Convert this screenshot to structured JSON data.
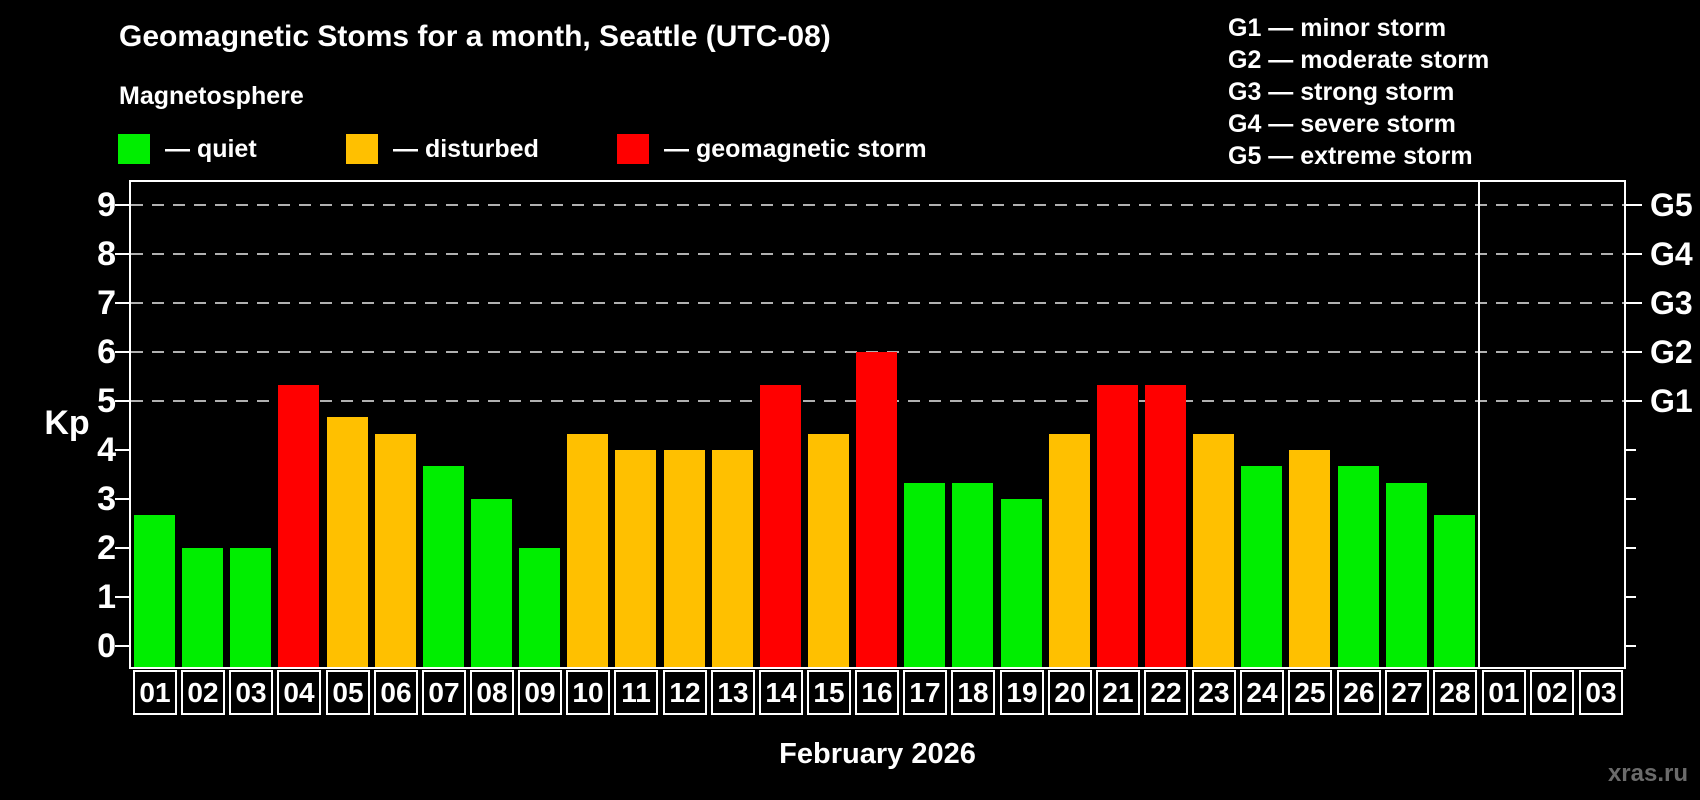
{
  "title": "Geomagnetic Stoms for a month, Seattle (UTC-08)",
  "watermark": "xras.ru",
  "magnetosphere": {
    "heading": "Magnetosphere",
    "items": [
      {
        "label": "— quiet",
        "status": "quiet",
        "color": "#00ee00"
      },
      {
        "label": "— disturbed",
        "status": "disturbed",
        "color": "#ffc000"
      },
      {
        "label": "— geomagnetic storm",
        "status": "storm",
        "color": "#ff0000"
      }
    ]
  },
  "g_legend": {
    "lines": [
      "G1 — minor storm",
      "G2 — moderate storm",
      "G3 — strong storm",
      "G4 — severe storm",
      "G5 — extreme storm"
    ]
  },
  "axis": {
    "ylabel": "Kp",
    "xlabel": "February 2026",
    "left_ticks": [
      "0",
      "1",
      "2",
      "3",
      "4",
      "5",
      "6",
      "7",
      "8",
      "9"
    ],
    "right_major_ticks": [
      {
        "label": "G1",
        "kp": 5
      },
      {
        "label": "G2",
        "kp": 6
      },
      {
        "label": "G3",
        "kp": 7
      },
      {
        "label": "G4",
        "kp": 8
      },
      {
        "label": "G5",
        "kp": 9
      }
    ],
    "right_minor_ticks_kp": [
      0,
      1,
      2,
      3,
      4
    ]
  },
  "chart_data": {
    "type": "bar",
    "title": "Geomagnetic Stoms for a month, Seattle (UTC-08)",
    "subtitle": "Magnetosphere",
    "xlabel": "February 2026",
    "ylabel": "Kp",
    "ylim": [
      0,
      9.4
    ],
    "yticks": [
      0,
      1,
      2,
      3,
      4,
      5,
      6,
      7,
      8,
      9
    ],
    "grid": "horizontal dashed gray lines at Kp 5,6,7,8,9 corresponding to G1–G5",
    "legend_position": "top-left",
    "categories": [
      "01",
      "02",
      "03",
      "04",
      "05",
      "06",
      "07",
      "08",
      "09",
      "10",
      "11",
      "12",
      "13",
      "14",
      "15",
      "16",
      "17",
      "18",
      "19",
      "20",
      "21",
      "22",
      "23",
      "24",
      "25",
      "26",
      "27",
      "28"
    ],
    "values": [
      2.67,
      2,
      2,
      5.33,
      4.67,
      4.33,
      3.67,
      3,
      2,
      4.33,
      4,
      4,
      4,
      5.33,
      4.33,
      6,
      3.33,
      3.33,
      3,
      4.33,
      5.33,
      5.33,
      4.33,
      3.67,
      4,
      3.67,
      3.33,
      2.67
    ],
    "statuses": [
      "quiet",
      "quiet",
      "quiet",
      "storm",
      "disturbed",
      "disturbed",
      "quiet",
      "quiet",
      "quiet",
      "disturbed",
      "disturbed",
      "disturbed",
      "disturbed",
      "storm",
      "disturbed",
      "storm",
      "quiet",
      "quiet",
      "quiet",
      "disturbed",
      "storm",
      "storm",
      "disturbed",
      "quiet",
      "disturbed",
      "quiet",
      "quiet",
      "quiet"
    ],
    "status_colors": {
      "quiet": "#00ee00",
      "disturbed": "#ffc000",
      "storm": "#ff0000"
    },
    "next_month_categories": [
      "01",
      "02",
      "03"
    ],
    "next_month_values": []
  }
}
